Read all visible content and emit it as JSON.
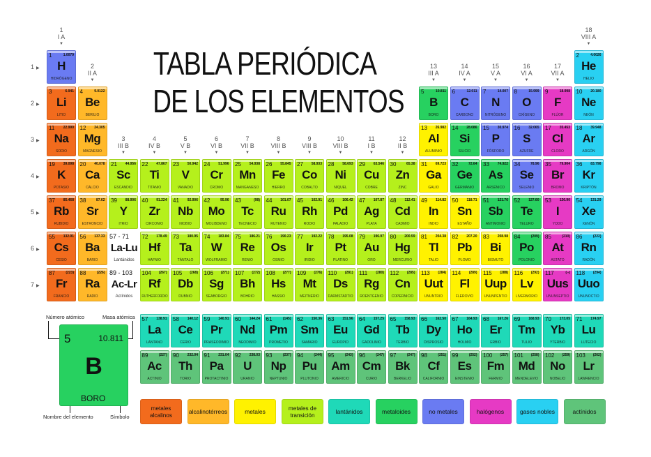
{
  "title": {
    "line1": "TABLA PERIÓDICA",
    "line2": "DE LOS ELEMENTOS"
  },
  "colors": {
    "al": "#f26b1d",
    "ae": "#ffb829",
    "mt": "#fff200",
    "tr": "#b5f01c",
    "la": "#1fd9b8",
    "md": "#27d160",
    "nm": "#6a7bf2",
    "ha": "#e63ac4",
    "ng": "#29d0f2",
    "ac": "#5fc47a"
  },
  "groups": [
    [
      "1",
      "I A"
    ],
    [
      "2",
      "II A"
    ],
    [
      "3",
      "III B"
    ],
    [
      "4",
      "IV B"
    ],
    [
      "5",
      "V B"
    ],
    [
      "6",
      "VI B"
    ],
    [
      "7",
      "VII B"
    ],
    [
      "8",
      "VIII B"
    ],
    [
      "9",
      "VIII B"
    ],
    [
      "10",
      "VIII B"
    ],
    [
      "11",
      "I B"
    ],
    [
      "12",
      "II B"
    ],
    [
      "13",
      "III A"
    ],
    [
      "14",
      "IV A"
    ],
    [
      "15",
      "V A"
    ],
    [
      "16",
      "VI A"
    ],
    [
      "17",
      "VII A"
    ],
    [
      "18",
      "VIII A"
    ]
  ],
  "periods": [
    "1",
    "2",
    "3",
    "4",
    "5",
    "6",
    "7"
  ],
  "elements": [
    [
      "1",
      "H",
      "1.0079",
      "HIDRÓGENO",
      "nm",
      1,
      1
    ],
    [
      "2",
      "He",
      "4.0026",
      "HELIO",
      "ng",
      1,
      18
    ],
    [
      "3",
      "Li",
      "6.941",
      "LITIO",
      "al",
      2,
      1
    ],
    [
      "4",
      "Be",
      "9.0122",
      "BERILIO",
      "ae",
      2,
      2
    ],
    [
      "5",
      "B",
      "10.811",
      "BORO",
      "md",
      2,
      13
    ],
    [
      "6",
      "C",
      "12.011",
      "CARBONO",
      "nm",
      2,
      14
    ],
    [
      "7",
      "N",
      "14.007",
      "NITRÓGENO",
      "nm",
      2,
      15
    ],
    [
      "8",
      "O",
      "15.999",
      "OXÍGENO",
      "nm",
      2,
      16
    ],
    [
      "9",
      "F",
      "18.998",
      "FLÚOR",
      "ha",
      2,
      17
    ],
    [
      "10",
      "Ne",
      "20.180",
      "NEÓN",
      "ng",
      2,
      18
    ],
    [
      "11",
      "Na",
      "22.990",
      "SODIO",
      "al",
      3,
      1
    ],
    [
      "12",
      "Mg",
      "24.305",
      "MAGNESIO",
      "ae",
      3,
      2
    ],
    [
      "13",
      "Al",
      "26.982",
      "ALUMINIO",
      "mt",
      3,
      13
    ],
    [
      "14",
      "Si",
      "28.086",
      "SILICIO",
      "md",
      3,
      14
    ],
    [
      "15",
      "P",
      "30.974",
      "FÓSFORO",
      "nm",
      3,
      15
    ],
    [
      "16",
      "S",
      "32.065",
      "AZUFRE",
      "nm",
      3,
      16
    ],
    [
      "17",
      "Cl",
      "35.453",
      "CLORO",
      "ha",
      3,
      17
    ],
    [
      "18",
      "Ar",
      "39.948",
      "ARGÓN",
      "ng",
      3,
      18
    ],
    [
      "19",
      "K",
      "39.098",
      "POTASIO",
      "al",
      4,
      1
    ],
    [
      "20",
      "Ca",
      "40.078",
      "CALCIO",
      "ae",
      4,
      2
    ],
    [
      "21",
      "Sc",
      "44.956",
      "ESCANDIO",
      "tr",
      4,
      3
    ],
    [
      "22",
      "Ti",
      "47.867",
      "TITANIO",
      "tr",
      4,
      4
    ],
    [
      "23",
      "V",
      "50.942",
      "VANADIO",
      "tr",
      4,
      5
    ],
    [
      "24",
      "Cr",
      "51.996",
      "CROMO",
      "tr",
      4,
      6
    ],
    [
      "25",
      "Mn",
      "54.938",
      "MANGANESO",
      "tr",
      4,
      7
    ],
    [
      "26",
      "Fe",
      "55.845",
      "HIERRO",
      "tr",
      4,
      8
    ],
    [
      "27",
      "Co",
      "58.933",
      "COBALTO",
      "tr",
      4,
      9
    ],
    [
      "28",
      "Ni",
      "58.693",
      "NÍQUEL",
      "tr",
      4,
      10
    ],
    [
      "29",
      "Cu",
      "63.546",
      "COBRE",
      "tr",
      4,
      11
    ],
    [
      "30",
      "Zn",
      "65.38",
      "ZINC",
      "tr",
      4,
      12
    ],
    [
      "31",
      "Ga",
      "69.723",
      "GALIO",
      "mt",
      4,
      13
    ],
    [
      "32",
      "Ge",
      "72.64",
      "GERMANIO",
      "md",
      4,
      14
    ],
    [
      "33",
      "As",
      "74.922",
      "ARSÉNICO",
      "md",
      4,
      15
    ],
    [
      "34",
      "Se",
      "78.96",
      "SELENIO",
      "nm",
      4,
      16
    ],
    [
      "35",
      "Br",
      "79.904",
      "BROMO",
      "ha",
      4,
      17
    ],
    [
      "36",
      "Kr",
      "83.798",
      "KRIPTÓN",
      "ng",
      4,
      18
    ],
    [
      "37",
      "Rb",
      "85.468",
      "RUBIDIO",
      "al",
      5,
      1
    ],
    [
      "38",
      "Sr",
      "87.62",
      "ESTRONCIO",
      "ae",
      5,
      2
    ],
    [
      "39",
      "Y",
      "88.906",
      "ITRIO",
      "tr",
      5,
      3
    ],
    [
      "40",
      "Zr",
      "91.224",
      "CIRCONIO",
      "tr",
      5,
      4
    ],
    [
      "41",
      "Nb",
      "92.906",
      "NIOBIO",
      "tr",
      5,
      5
    ],
    [
      "42",
      "Mo",
      "95.96",
      "MOLIBDENO",
      "tr",
      5,
      6
    ],
    [
      "43",
      "Tc",
      "(98)",
      "TECNECIO",
      "tr",
      5,
      7
    ],
    [
      "44",
      "Ru",
      "101.07",
      "RUTENIO",
      "tr",
      5,
      8
    ],
    [
      "45",
      "Rh",
      "102.91",
      "RODIO",
      "tr",
      5,
      9
    ],
    [
      "46",
      "Pd",
      "106.42",
      "PALADIO",
      "tr",
      5,
      10
    ],
    [
      "47",
      "Ag",
      "107.87",
      "PLATA",
      "tr",
      5,
      11
    ],
    [
      "48",
      "Cd",
      "112.41",
      "CADMIO",
      "tr",
      5,
      12
    ],
    [
      "49",
      "In",
      "114.82",
      "INDIO",
      "mt",
      5,
      13
    ],
    [
      "50",
      "Sn",
      "118.71",
      "ESTAÑO",
      "mt",
      5,
      14
    ],
    [
      "51",
      "Sb",
      "121.76",
      "ANTIMONIO",
      "md",
      5,
      15
    ],
    [
      "52",
      "Te",
      "127.60",
      "TELURO",
      "md",
      5,
      16
    ],
    [
      "53",
      "I",
      "126.90",
      "YODO",
      "ha",
      5,
      17
    ],
    [
      "54",
      "Xe",
      "131.29",
      "XENÓN",
      "ng",
      5,
      18
    ],
    [
      "55",
      "Cs",
      "132.91",
      "CESIO",
      "al",
      6,
      1
    ],
    [
      "56",
      "Ba",
      "137.33",
      "BARIO",
      "ae",
      6,
      2
    ],
    [
      "72",
      "Hf",
      "178.49",
      "HAFNIO",
      "tr",
      6,
      4
    ],
    [
      "73",
      "Ta",
      "180.95",
      "TÁNTALO",
      "tr",
      6,
      5
    ],
    [
      "74",
      "W",
      "183.84",
      "WOLFRAMIO",
      "tr",
      6,
      6
    ],
    [
      "75",
      "Re",
      "186.21",
      "RENIO",
      "tr",
      6,
      7
    ],
    [
      "76",
      "Os",
      "190.23",
      "OSMIO",
      "tr",
      6,
      8
    ],
    [
      "77",
      "Ir",
      "192.22",
      "IRIDIO",
      "tr",
      6,
      9
    ],
    [
      "78",
      "Pt",
      "195.08",
      "PLATINO",
      "tr",
      6,
      10
    ],
    [
      "79",
      "Au",
      "196.97",
      "ORO",
      "tr",
      6,
      11
    ],
    [
      "80",
      "Hg",
      "200.59",
      "MERCURIO",
      "tr",
      6,
      12
    ],
    [
      "81",
      "Tl",
      "204.38",
      "TALIO",
      "mt",
      6,
      13
    ],
    [
      "82",
      "Pb",
      "207.20",
      "PLOMO",
      "mt",
      6,
      14
    ],
    [
      "83",
      "Bi",
      "208.98",
      "BISMUTO",
      "mt",
      6,
      15
    ],
    [
      "84",
      "Po",
      "(209)",
      "POLONIO",
      "md",
      6,
      16
    ],
    [
      "85",
      "At",
      "(210)",
      "ASTATO",
      "ha",
      6,
      17
    ],
    [
      "86",
      "Rn",
      "(222)",
      "RADÓN",
      "ng",
      6,
      18
    ],
    [
      "87",
      "Fr",
      "(223)",
      "FRANCIO",
      "al",
      7,
      1
    ],
    [
      "88",
      "Ra",
      "(226)",
      "RADIO",
      "ae",
      7,
      2
    ],
    [
      "104",
      "Rf",
      "(267)",
      "RUTHERFORDIO",
      "tr",
      7,
      4
    ],
    [
      "105",
      "Db",
      "(268)",
      "DUBNIO",
      "tr",
      7,
      5
    ],
    [
      "106",
      "Sg",
      "(271)",
      "SEABORGIO",
      "tr",
      7,
      6
    ],
    [
      "107",
      "Bh",
      "(272)",
      "BOHRIO",
      "tr",
      7,
      7
    ],
    [
      "108",
      "Hs",
      "(277)",
      "HASSIO",
      "tr",
      7,
      8
    ],
    [
      "109",
      "Mt",
      "(276)",
      "MEITNERIO",
      "tr",
      7,
      9
    ],
    [
      "110",
      "Ds",
      "(281)",
      "DARMSTADTIO",
      "tr",
      7,
      10
    ],
    [
      "111",
      "Rg",
      "(280)",
      "ROENTGENIO",
      "tr",
      7,
      11
    ],
    [
      "112",
      "Cn",
      "(285)",
      "COPERNICIO",
      "tr",
      7,
      12
    ],
    [
      "113",
      "Uut",
      "(284)",
      "UNUNTRIO",
      "mt",
      7,
      13
    ],
    [
      "114",
      "Fl",
      "(289)",
      "FLEROVIO",
      "mt",
      7,
      14
    ],
    [
      "115",
      "Uup",
      "(288)",
      "UNUNPENTIO",
      "mt",
      7,
      15
    ],
    [
      "116",
      "Lv",
      "(292)",
      "LIVERMORIO",
      "mt",
      7,
      16
    ],
    [
      "117",
      "Uus",
      "(--)",
      "UNUNSEPTIO",
      "ha",
      7,
      17
    ],
    [
      "118",
      "Uuo",
      "(294)",
      "UNUNOCTIO",
      "ng",
      7,
      18
    ]
  ],
  "lanthanides": [
    [
      "57",
      "La",
      "138.91",
      "LANTANO"
    ],
    [
      "58",
      "Ce",
      "140.12",
      "CERIO"
    ],
    [
      "59",
      "Pr",
      "140.91",
      "PRASEODIMIO"
    ],
    [
      "60",
      "Nd",
      "144.24",
      "NEODIMIO"
    ],
    [
      "61",
      "Pm",
      "(145)",
      "PROMETIO"
    ],
    [
      "62",
      "Sm",
      "150.36",
      "SAMARIO"
    ],
    [
      "63",
      "Eu",
      "151.96",
      "EUROPIO"
    ],
    [
      "64",
      "Gd",
      "157.25",
      "GADOLINIO"
    ],
    [
      "65",
      "Tb",
      "158.93",
      "TERBIO"
    ],
    [
      "66",
      "Dy",
      "162.50",
      "DISPROSIO"
    ],
    [
      "67",
      "Ho",
      "164.93",
      "HOLMIO"
    ],
    [
      "68",
      "Er",
      "167.26",
      "ERBIO"
    ],
    [
      "69",
      "Tm",
      "168.93",
      "TULIO"
    ],
    [
      "70",
      "Yb",
      "173.05",
      "YTERBIO"
    ],
    [
      "71",
      "Lu",
      "174.97",
      "LUTECIO"
    ]
  ],
  "actinides": [
    [
      "89",
      "Ac",
      "(227)",
      "ACTINIO"
    ],
    [
      "90",
      "Th",
      "232.04",
      "TORIO"
    ],
    [
      "91",
      "Pa",
      "231.04",
      "PROTACTINIO"
    ],
    [
      "92",
      "U",
      "238.03",
      "URANIO"
    ],
    [
      "93",
      "Np",
      "(237)",
      "NEPTUNIO"
    ],
    [
      "94",
      "Pu",
      "(244)",
      "PLUTONIO"
    ],
    [
      "95",
      "Am",
      "(243)",
      "AMERICIO"
    ],
    [
      "96",
      "Cm",
      "(247)",
      "CURIO"
    ],
    [
      "97",
      "Bk",
      "(247)",
      "BERKELIO"
    ],
    [
      "98",
      "Cf",
      "(251)",
      "CALIFORNIO"
    ],
    [
      "99",
      "Es",
      "(252)",
      "EINSTENIO"
    ],
    [
      "100",
      "Fm",
      "(257)",
      "FERMIO"
    ],
    [
      "101",
      "Md",
      "(258)",
      "MENDELEVIO"
    ],
    [
      "102",
      "No",
      "(259)",
      "NOBELIO"
    ],
    [
      "103",
      "Lr",
      "(262)",
      "LAWRENCIO"
    ]
  ],
  "placeholders": {
    "lanthanides": {
      "range": "57 - 71",
      "symbol": "La-Lu",
      "label": "Lantánidos"
    },
    "actinides": {
      "range": "89 - 103",
      "symbol": "Ac-Lr",
      "label": "Actínidos"
    }
  },
  "key": {
    "number": "5",
    "mass": "10.811",
    "symbol": "B",
    "name": "BORO",
    "label_number": "Número atómico",
    "label_mass": "Masa atómica",
    "label_name": "Nombre del elemento",
    "label_symbol": "Símbolo"
  },
  "legend": [
    {
      "cat": "al",
      "label": "metales alcalinos"
    },
    {
      "cat": "ae",
      "label": "alcalinotérreos"
    },
    {
      "cat": "mt",
      "label": "metales"
    },
    {
      "cat": "tr",
      "label": "metales de transición"
    },
    {
      "cat": "la",
      "label": "lantánidos"
    },
    {
      "cat": "md",
      "label": "metaloides"
    },
    {
      "cat": "nm",
      "label": "no metales"
    },
    {
      "cat": "ha",
      "label": "halógenos"
    },
    {
      "cat": "ng",
      "label": "gases nobles"
    },
    {
      "cat": "ac",
      "label": "actínidos"
    }
  ]
}
